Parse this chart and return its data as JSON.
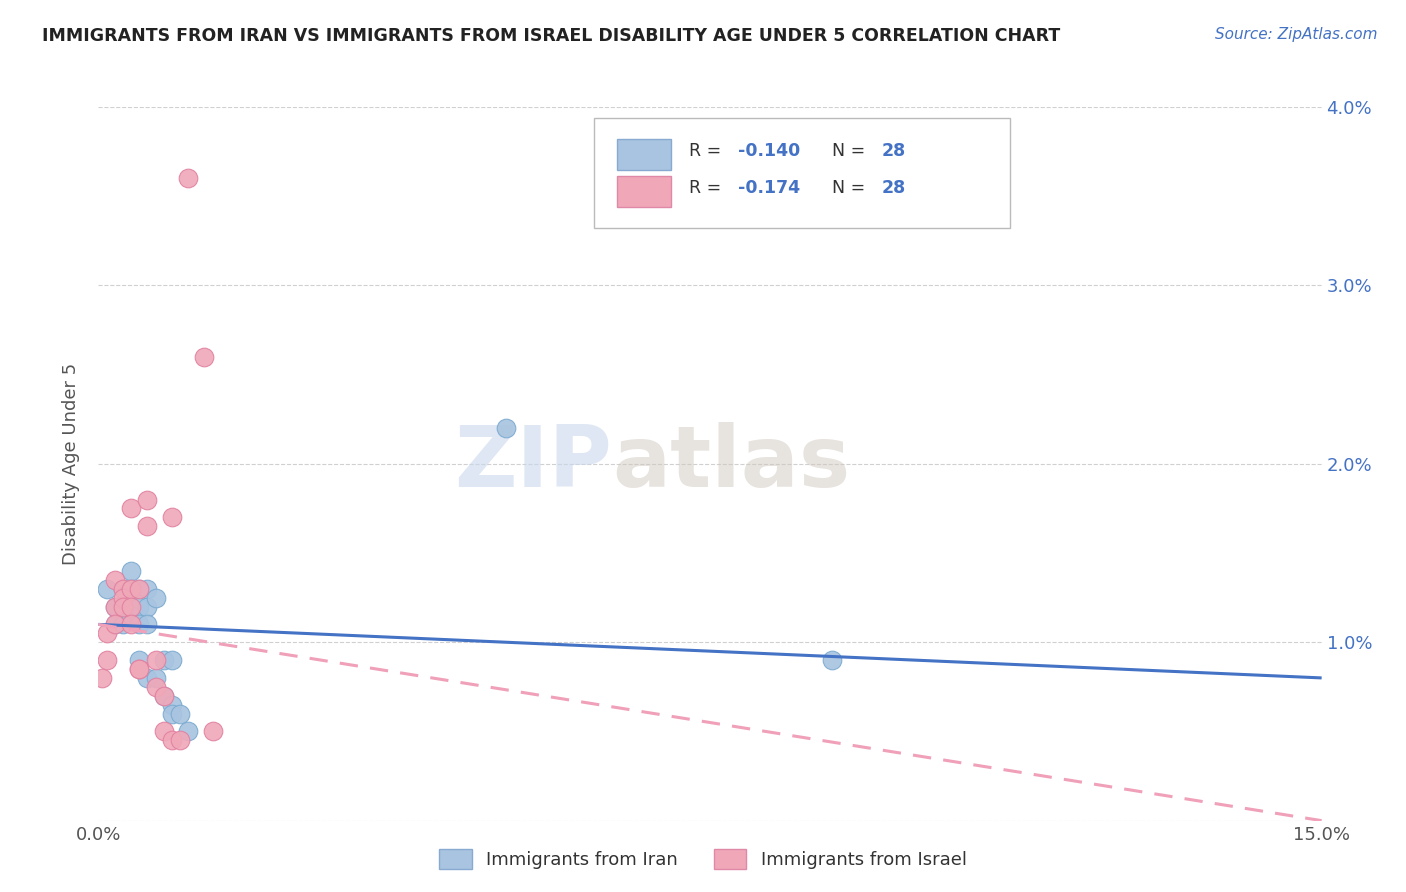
{
  "title": "IMMIGRANTS FROM IRAN VS IMMIGRANTS FROM ISRAEL DISABILITY AGE UNDER 5 CORRELATION CHART",
  "source": "Source: ZipAtlas.com",
  "ylabel": "Disability Age Under 5",
  "legend_iran": "Immigrants from Iran",
  "legend_israel": "Immigrants from Israel",
  "color_iran": "#a8c4e0",
  "color_israel": "#f0a8b8",
  "color_iran_line": "#4472c4",
  "color_israel_line": "#f0a0b8",
  "xlim": [
    0.0,
    0.15
  ],
  "ylim": [
    0.0,
    0.04
  ],
  "yticks": [
    0.0,
    0.01,
    0.02,
    0.03,
    0.04
  ],
  "ytick_labels": [
    "",
    "1.0%",
    "2.0%",
    "3.0%",
    "4.0%"
  ],
  "iran_trend_start": 0.011,
  "iran_trend_end": 0.008,
  "israel_trend_start": 0.011,
  "israel_trend_end": 0.0,
  "iran_x": [
    0.001,
    0.002,
    0.002,
    0.003,
    0.003,
    0.003,
    0.004,
    0.004,
    0.004,
    0.005,
    0.005,
    0.005,
    0.005,
    0.006,
    0.006,
    0.006,
    0.006,
    0.007,
    0.007,
    0.008,
    0.008,
    0.009,
    0.009,
    0.009,
    0.01,
    0.011,
    0.05,
    0.09
  ],
  "iran_y": [
    0.013,
    0.012,
    0.011,
    0.013,
    0.012,
    0.011,
    0.014,
    0.013,
    0.0115,
    0.013,
    0.012,
    0.011,
    0.009,
    0.013,
    0.012,
    0.011,
    0.008,
    0.0125,
    0.008,
    0.009,
    0.007,
    0.009,
    0.0065,
    0.006,
    0.006,
    0.005,
    0.022,
    0.009
  ],
  "israel_x": [
    0.0005,
    0.001,
    0.001,
    0.002,
    0.002,
    0.002,
    0.003,
    0.003,
    0.003,
    0.004,
    0.004,
    0.004,
    0.004,
    0.005,
    0.005,
    0.005,
    0.006,
    0.006,
    0.007,
    0.007,
    0.008,
    0.008,
    0.009,
    0.009,
    0.01,
    0.011,
    0.013,
    0.014
  ],
  "israel_y": [
    0.008,
    0.0105,
    0.009,
    0.0135,
    0.012,
    0.011,
    0.013,
    0.0125,
    0.012,
    0.0175,
    0.013,
    0.012,
    0.011,
    0.013,
    0.0085,
    0.0085,
    0.018,
    0.0165,
    0.009,
    0.0075,
    0.007,
    0.005,
    0.017,
    0.0045,
    0.0045,
    0.036,
    0.026,
    0.005
  ],
  "watermark_zip": "ZIP",
  "watermark_atlas": "atlas",
  "background_color": "#ffffff",
  "grid_color": "#d0d0d0"
}
